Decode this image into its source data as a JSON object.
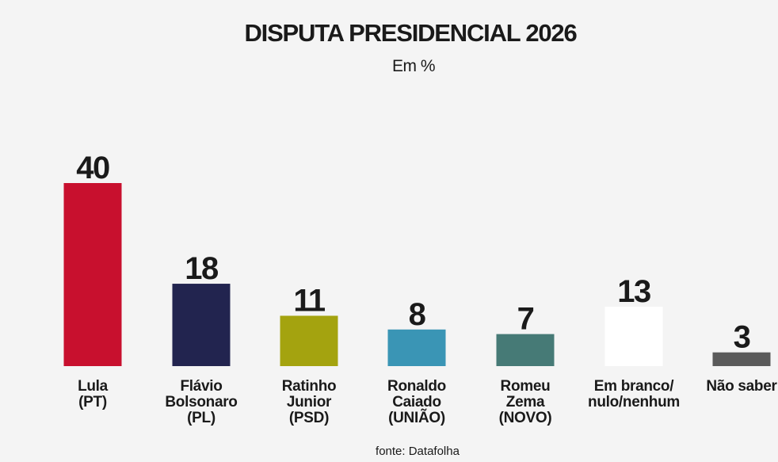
{
  "chart_data": {
    "type": "bar",
    "title": "DISPUTA PRESIDENCIAL 2026",
    "subtitle": "Em %",
    "source": "fonte: Datafolha",
    "ylim": [
      0,
      40
    ],
    "grid": false,
    "legend": "none",
    "categories": [
      [
        "Lula",
        "(PT)"
      ],
      [
        "Flávio",
        "Bolsonaro",
        "(PL)"
      ],
      [
        "Ratinho",
        "Junior",
        "(PSD)"
      ],
      [
        "Ronaldo",
        "Caiado",
        "(UNIÃO)"
      ],
      [
        "Romeu",
        "Zema",
        "(NOVO)"
      ],
      [
        "Em branco/",
        "nulo/nenhum"
      ],
      [
        "Não saber"
      ]
    ],
    "values": [
      40,
      18,
      11,
      8,
      7,
      13,
      3
    ],
    "colors": [
      "#c8102e",
      "#22244f",
      "#a4a30f",
      "#3a95b5",
      "#467a76",
      "#ffffff",
      "#5a5a5a"
    ]
  }
}
